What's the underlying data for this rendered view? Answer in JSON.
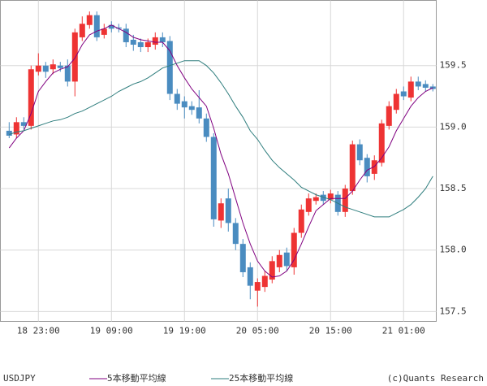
{
  "chart_data": {
    "type": "candlestick",
    "symbol": "USDJPY",
    "credit": "(c)Quants Research",
    "up_color": "#ee3333",
    "down_color": "#4a8cc0",
    "open": [
      158.97,
      158.94,
      159.04,
      159.01,
      159.45,
      159.5,
      159.47,
      159.5,
      159.5,
      159.37,
      159.73,
      159.83,
      159.91,
      159.75,
      159.83,
      159.81,
      159.8,
      159.71,
      159.69,
      159.65,
      159.67,
      159.73,
      159.7,
      159.27,
      159.21,
      159.17,
      159.16,
      159.07,
      158.92,
      158.24,
      158.42,
      158.22,
      158.05,
      157.86,
      157.67,
      157.7,
      157.76,
      157.86,
      157.98,
      157.86,
      158.14,
      158.31,
      158.4,
      158.45,
      158.41,
      158.45,
      158.31,
      158.48,
      158.86,
      158.75,
      158.62,
      158.71,
      159.01,
      159.14,
      159.29,
      159.24,
      159.37,
      159.35,
      159.33
    ],
    "high": [
      159.04,
      159.08,
      159.08,
      159.5,
      159.6,
      159.53,
      159.55,
      159.53,
      159.55,
      159.8,
      159.9,
      159.94,
      159.94,
      159.84,
      159.86,
      159.84,
      159.84,
      159.75,
      159.72,
      159.72,
      159.77,
      159.77,
      159.74,
      159.31,
      159.25,
      159.21,
      159.3,
      159.11,
      158.95,
      158.42,
      158.5,
      158.26,
      158.09,
      157.9,
      157.77,
      157.83,
      157.95,
      158.0,
      158.02,
      158.18,
      158.37,
      158.46,
      158.46,
      158.48,
      158.49,
      158.48,
      158.53,
      158.89,
      158.9,
      158.78,
      158.77,
      159.06,
      159.21,
      159.31,
      159.33,
      159.41,
      159.41,
      159.38,
      159.35
    ],
    "low": [
      158.91,
      158.91,
      158.98,
      158.98,
      159.42,
      159.4,
      159.43,
      159.45,
      159.33,
      159.25,
      159.7,
      159.8,
      159.7,
      159.72,
      159.77,
      159.77,
      159.65,
      159.62,
      159.61,
      159.61,
      159.63,
      159.65,
      159.22,
      159.14,
      159.07,
      159.1,
      159.03,
      158.88,
      158.19,
      158.18,
      158.15,
      158.0,
      157.78,
      157.6,
      157.54,
      157.66,
      157.73,
      157.82,
      157.83,
      157.8,
      158.1,
      158.28,
      158.37,
      158.37,
      158.38,
      158.28,
      158.27,
      158.45,
      158.69,
      158.55,
      158.57,
      158.68,
      158.98,
      159.11,
      159.22,
      159.21,
      159.3,
      159.29,
      159.29
    ],
    "close": [
      158.93,
      159.04,
      159.01,
      159.47,
      159.5,
      159.45,
      159.51,
      159.48,
      159.37,
      159.77,
      159.84,
      159.91,
      159.73,
      159.8,
      159.8,
      159.8,
      159.69,
      159.67,
      159.65,
      159.69,
      159.73,
      159.69,
      159.27,
      159.19,
      159.16,
      159.14,
      159.07,
      158.92,
      158.25,
      158.38,
      158.22,
      158.05,
      157.82,
      157.71,
      157.74,
      157.79,
      157.91,
      157.96,
      157.87,
      158.14,
      158.33,
      158.42,
      158.43,
      158.4,
      158.46,
      158.31,
      158.5,
      158.86,
      158.73,
      158.6,
      158.73,
      159.03,
      159.17,
      159.27,
      159.25,
      159.37,
      159.33,
      159.32,
      159.31
    ],
    "series": [
      {
        "name": "5本移動平均線",
        "color": "#800080",
        "values": [
          158.83,
          158.91,
          158.97,
          159.11,
          159.29,
          159.37,
          159.44,
          159.47,
          159.49,
          159.56,
          159.67,
          159.75,
          159.78,
          159.8,
          159.83,
          159.8,
          159.77,
          159.73,
          159.71,
          159.7,
          159.69,
          159.69,
          159.62,
          159.5,
          159.4,
          159.31,
          159.24,
          159.17,
          158.99,
          158.78,
          158.62,
          158.42,
          158.22,
          158.05,
          157.91,
          157.83,
          157.78,
          157.79,
          157.83,
          157.92,
          158.05,
          158.19,
          158.32,
          158.37,
          158.42,
          158.42,
          158.42,
          158.48,
          158.57,
          158.65,
          158.68,
          158.75,
          158.84,
          158.97,
          159.07,
          159.17,
          159.24,
          159.29,
          159.32
        ]
      },
      {
        "name": "25本移動平均線",
        "color": "#2e7d7d",
        "values": [
          158.94,
          158.96,
          158.97,
          158.99,
          159.01,
          159.03,
          159.05,
          159.06,
          159.08,
          159.11,
          159.13,
          159.16,
          159.19,
          159.22,
          159.25,
          159.29,
          159.32,
          159.35,
          159.37,
          159.4,
          159.44,
          159.48,
          159.5,
          159.52,
          159.54,
          159.54,
          159.54,
          159.5,
          159.44,
          159.36,
          159.27,
          159.17,
          159.08,
          158.97,
          158.9,
          158.81,
          158.73,
          158.67,
          158.62,
          158.57,
          158.51,
          158.48,
          158.45,
          158.43,
          158.41,
          158.38,
          158.35,
          158.33,
          158.31,
          158.29,
          158.27,
          158.27,
          158.27,
          158.3,
          158.33,
          158.37,
          158.43,
          158.5,
          158.6
        ]
      }
    ],
    "xlim": [
      -1.2,
      58.47
    ],
    "xticks": [
      {
        "value": 4,
        "label": "18 23:00"
      },
      {
        "value": 14,
        "label": "19 09:00"
      },
      {
        "value": 24,
        "label": "19 19:00"
      },
      {
        "value": 34,
        "label": "20 05:00"
      },
      {
        "value": 44,
        "label": "20 15:00"
      },
      {
        "value": 54,
        "label": "21 01:00"
      }
    ],
    "ylim": [
      157.42,
      160.03
    ],
    "yticks": [
      157.5,
      {
        "value": 158,
        "label": "158.0"
      },
      158.5,
      {
        "value": 159,
        "label": "159.0"
      },
      159.5
    ],
    "grid": true
  }
}
